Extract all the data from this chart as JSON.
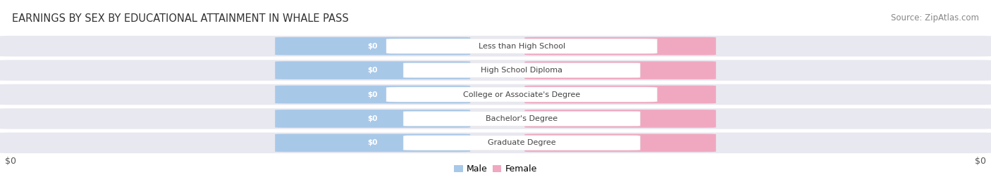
{
  "title": "EARNINGS BY SEX BY EDUCATIONAL ATTAINMENT IN WHALE PASS",
  "source": "Source: ZipAtlas.com",
  "categories": [
    "Less than High School",
    "High School Diploma",
    "College or Associate's Degree",
    "Bachelor's Degree",
    "Graduate Degree"
  ],
  "male_color": "#a8c8e8",
  "female_color": "#f0a8c0",
  "row_bg_color": "#e8e8f0",
  "label_text_color": "#ffffff",
  "category_label_color": "#444444",
  "title_color": "#333333",
  "source_color": "#888888",
  "xlabel_color": "#555555",
  "background_color": "#ffffff",
  "xlabel_left": "$0",
  "xlabel_right": "$0",
  "legend_labels": [
    "Male",
    "Female"
  ],
  "title_fontsize": 10.5,
  "source_fontsize": 8.5,
  "tick_fontsize": 9,
  "bar_label_fontsize": 7.5,
  "cat_label_fontsize": 8,
  "legend_fontsize": 9
}
